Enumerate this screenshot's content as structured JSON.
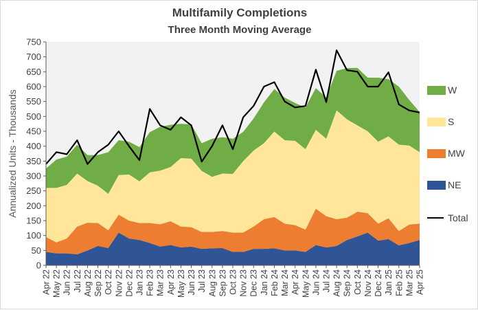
{
  "chart_data": {
    "type": "area",
    "title": "Multifamily  Completions",
    "subtitle": "Three Month Moving Average",
    "ylabel": "Annualized  Units  -  Thousands",
    "xlabel": "",
    "stacked": true,
    "ylim": [
      0,
      750
    ],
    "yticks": [
      0,
      50,
      100,
      150,
      200,
      250,
      300,
      350,
      400,
      450,
      500,
      550,
      600,
      650,
      700,
      750
    ],
    "grid": false,
    "legend_position": "right",
    "categories": [
      "Apr 22",
      "May 22",
      "Jun 22",
      "Jul 22",
      "Aug 22",
      "Sep 22",
      "Oct 22",
      "Nov 22",
      "Dec 22",
      "Jan 23",
      "Feb 23",
      "Mar 23",
      "Apr 23",
      "May 23",
      "Jun 23",
      "Jul 23",
      "Aug 23",
      "Sep 23",
      "Oct 23",
      "Nov 23",
      "Dec 23",
      "Jan 24",
      "Feb 24",
      "Mar 24",
      "Apr 24",
      "May 24",
      "Jun 24",
      "Jul 24",
      "Aug 24",
      "Sep 24",
      "Oct 24",
      "Nov 24",
      "Dec 24",
      "Jan 25",
      "Feb 25",
      "Mar 25",
      "Apr 25"
    ],
    "series": [
      {
        "name": "NE",
        "color": "#2f5597",
        "values": [
          45,
          40,
          40,
          37,
          50,
          65,
          58,
          110,
          90,
          85,
          75,
          63,
          68,
          60,
          63,
          55,
          57,
          58,
          45,
          45,
          55,
          55,
          57,
          50,
          50,
          45,
          68,
          60,
          65,
          85,
          97,
          110,
          83,
          88,
          67,
          75,
          85
        ]
      },
      {
        "name": "MW",
        "color": "#ed7d31",
        "values": [
          50,
          37,
          50,
          93,
          93,
          77,
          60,
          60,
          60,
          57,
          67,
          75,
          80,
          70,
          65,
          57,
          55,
          57,
          65,
          65,
          75,
          100,
          105,
          90,
          85,
          75,
          122,
          105,
          90,
          75,
          83,
          65,
          57,
          70,
          48,
          62,
          55
        ]
      },
      {
        "name": "S",
        "color": "#ffe699",
        "values": [
          165,
          183,
          180,
          178,
          140,
          125,
          122,
          133,
          155,
          140,
          170,
          180,
          182,
          230,
          230,
          205,
          185,
          193,
          197,
          240,
          255,
          255,
          287,
          280,
          283,
          270,
          265,
          260,
          365,
          330,
          290,
          275,
          275,
          275,
          290,
          265,
          240
        ]
      },
      {
        "name": "W",
        "color": "#70ad47",
        "values": [
          65,
          95,
          95,
          97,
          87,
          103,
          140,
          117,
          110,
          115,
          135,
          147,
          142,
          115,
          115,
          93,
          128,
          122,
          118,
          98,
          108,
          137,
          143,
          143,
          127,
          140,
          140,
          138,
          133,
          172,
          193,
          180,
          215,
          192,
          195,
          153,
          135
        ]
      }
    ],
    "total": {
      "name": "Total",
      "color": "#000000",
      "values": [
        340,
        380,
        373,
        420,
        340,
        380,
        405,
        450,
        400,
        353,
        525,
        470,
        455,
        497,
        470,
        348,
        400,
        470,
        390,
        497,
        535,
        600,
        615,
        550,
        530,
        535,
        657,
        548,
        722,
        655,
        650,
        600,
        600,
        648,
        540,
        520,
        513
      ]
    }
  }
}
